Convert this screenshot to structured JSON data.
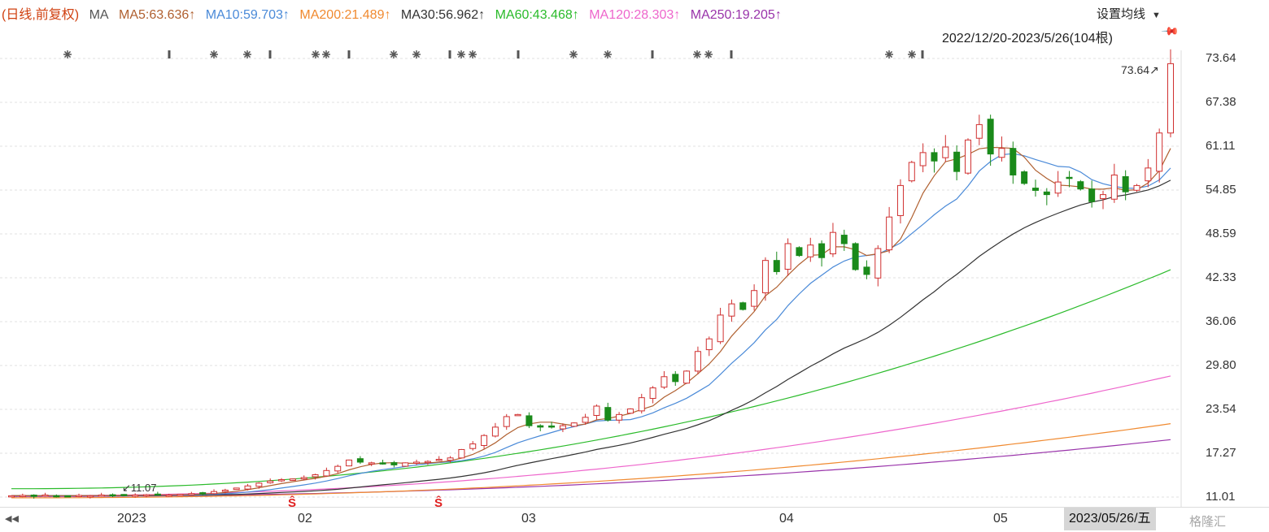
{
  "legend": {
    "period": "(日线,前复权)",
    "ma_label": "MA",
    "ma5": "MA5:63.636↑",
    "ma10": "MA10:59.703↑",
    "ma200": "MA200:21.489↑",
    "ma30": "MA30:56.962↑",
    "ma60": "MA60:43.468↑",
    "ma120": "MA120:28.303↑",
    "ma250": "MA250:19.205↑"
  },
  "toolbar": {
    "settings_label": "设置均线",
    "range_label": "2022/12/20-2023/5/26(104根)"
  },
  "colors": {
    "period": "#d04010",
    "ma5": "#b06030",
    "ma10": "#4a8ad8",
    "ma200": "#f08a30",
    "ma30": "#333333",
    "ma60": "#2bbb2b",
    "ma120": "#ee66cc",
    "ma250": "#9933aa",
    "up": "#d03030",
    "down": "#1a8a1a",
    "marker": "#555555",
    "s_marker": "#e02020"
  },
  "price_axis": [
    "73.64",
    "67.38",
    "61.11",
    "54.85",
    "48.59",
    "42.33",
    "36.06",
    "29.80",
    "23.54",
    "17.27",
    "11.01"
  ],
  "annotations": {
    "max_label": "73.64",
    "min_label": "11.07"
  },
  "x_axis": [
    "2023",
    "02",
    "03",
    "04",
    "05"
  ],
  "cursor_date": "2023/05/26/五",
  "watermark": "格隆汇",
  "icons": {
    "scroll_left": "double-left-arrow-icon",
    "pin": "pin-icon",
    "settings_dropdown": "triangle-down-icon"
  },
  "chart_data": {
    "type": "candlestick",
    "y_range": [
      11.01,
      73.64
    ],
    "candles_ohlc_sample": [
      [
        11.2,
        11.3,
        11.1,
        11.2
      ],
      [
        11.1,
        11.3,
        11.0,
        11.2
      ],
      [
        11.2,
        11.4,
        11.1,
        11.3
      ],
      [
        13.2,
        13.6,
        13.0,
        13.5
      ],
      [
        15.6,
        16.8,
        15.4,
        16.5
      ],
      [
        15.5,
        15.9,
        15.2,
        15.6
      ],
      [
        21.5,
        23.5,
        21.2,
        22.8
      ],
      [
        22.1,
        23.0,
        21.5,
        21.7
      ],
      [
        27.0,
        28.8,
        26.6,
        28.2
      ],
      [
        32.5,
        34.2,
        32.0,
        33.8
      ],
      [
        37.5,
        39.8,
        35.6,
        38.8
      ],
      [
        43.5,
        46.2,
        42.6,
        45.7
      ],
      [
        47.0,
        49.5,
        44.5,
        45.0
      ],
      [
        53.0,
        58.6,
        52.5,
        58.0
      ],
      [
        60.0,
        64.8,
        59.5,
        64.2
      ],
      [
        64.0,
        65.2,
        58.5,
        60.0
      ],
      [
        56.0,
        58.5,
        53.5,
        54.6
      ],
      [
        52.5,
        55.5,
        51.2,
        55.1
      ],
      [
        56.0,
        58.8,
        55.2,
        55.8
      ],
      [
        58.0,
        61.5,
        57.0,
        61.0
      ],
      [
        66.0,
        73.64,
        65.5,
        72.9
      ]
    ],
    "markers_S": 2
  }
}
